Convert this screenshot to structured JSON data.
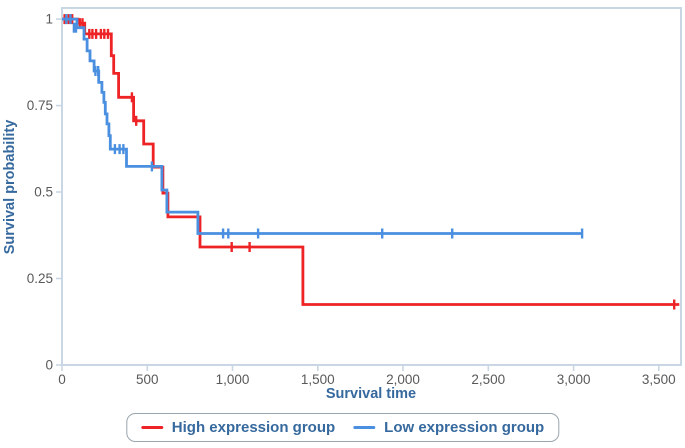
{
  "figure": {
    "background": "#ffffff",
    "plot_border_color": "#c9d7e4",
    "tick_label_color": "#595959",
    "axis_title_color": "#36699e",
    "legend": {
      "border_color": "#9aa5ad",
      "items": [
        {
          "label": "High expression group",
          "color": "#ee2326"
        },
        {
          "label": "Low expression group",
          "color": "#4a8fe0"
        }
      ]
    }
  },
  "chart_data": {
    "type": "line",
    "subtype": "kaplan-meier-step",
    "title": "",
    "xlabel": "Survival time",
    "ylabel": "Survival probability",
    "xlim": [
      0,
      3630
    ],
    "ylim": [
      0,
      1.032
    ],
    "grid": false,
    "legend_position": "bottom",
    "x_ticks": [
      0,
      500,
      1000,
      1500,
      2000,
      2500,
      3000,
      3500
    ],
    "x_tick_labels": [
      "0",
      "500",
      "1,000",
      "1,500",
      "2,000",
      "2,500",
      "3,000",
      "3,500"
    ],
    "y_ticks": [
      0,
      0.25,
      0.5,
      0.75,
      1
    ],
    "y_tick_labels": [
      "0",
      "0.25",
      "0.5",
      "0.75",
      "1"
    ],
    "series": [
      {
        "name": "High expression group",
        "color": "#ee2326",
        "steps": [
          [
            0,
            1.0
          ],
          [
            94,
            0.988
          ],
          [
            133,
            0.957
          ],
          [
            289,
            0.894
          ],
          [
            303,
            0.843
          ],
          [
            332,
            0.774
          ],
          [
            420,
            0.706
          ],
          [
            479,
            0.639
          ],
          [
            535,
            0.572
          ],
          [
            592,
            0.497
          ],
          [
            621,
            0.428
          ],
          [
            809,
            0.341
          ],
          [
            1413,
            0.175
          ]
        ],
        "end_time": 3620,
        "censors": [
          [
            15,
            1.0
          ],
          [
            40,
            1.0
          ],
          [
            60,
            1.0
          ],
          [
            105,
            0.988
          ],
          [
            120,
            0.988
          ],
          [
            160,
            0.957
          ],
          [
            178,
            0.957
          ],
          [
            200,
            0.957
          ],
          [
            228,
            0.957
          ],
          [
            248,
            0.957
          ],
          [
            270,
            0.957
          ],
          [
            410,
            0.774
          ],
          [
            435,
            0.706
          ],
          [
            995,
            0.341
          ],
          [
            1100,
            0.341
          ],
          [
            3590,
            0.175
          ]
        ]
      },
      {
        "name": "Low expression group",
        "color": "#4a8fe0",
        "steps": [
          [
            0,
            1.0
          ],
          [
            88,
            0.975
          ],
          [
            129,
            0.942
          ],
          [
            147,
            0.908
          ],
          [
            164,
            0.879
          ],
          [
            188,
            0.85
          ],
          [
            215,
            0.817
          ],
          [
            234,
            0.788
          ],
          [
            246,
            0.759
          ],
          [
            254,
            0.726
          ],
          [
            264,
            0.697
          ],
          [
            275,
            0.663
          ],
          [
            283,
            0.624
          ],
          [
            378,
            0.574
          ],
          [
            586,
            0.506
          ],
          [
            615,
            0.442
          ],
          [
            797,
            0.38
          ]
        ],
        "end_time": 3055,
        "censors": [
          [
            25,
            1.0
          ],
          [
            50,
            1.0
          ],
          [
            70,
            0.975
          ],
          [
            82,
            0.975
          ],
          [
            196,
            0.85
          ],
          [
            212,
            0.85
          ],
          [
            310,
            0.624
          ],
          [
            338,
            0.624
          ],
          [
            360,
            0.624
          ],
          [
            527,
            0.574
          ],
          [
            945,
            0.38
          ],
          [
            975,
            0.38
          ],
          [
            1150,
            0.38
          ],
          [
            1878,
            0.38
          ],
          [
            2288,
            0.38
          ],
          [
            3050,
            0.38
          ]
        ]
      }
    ]
  }
}
